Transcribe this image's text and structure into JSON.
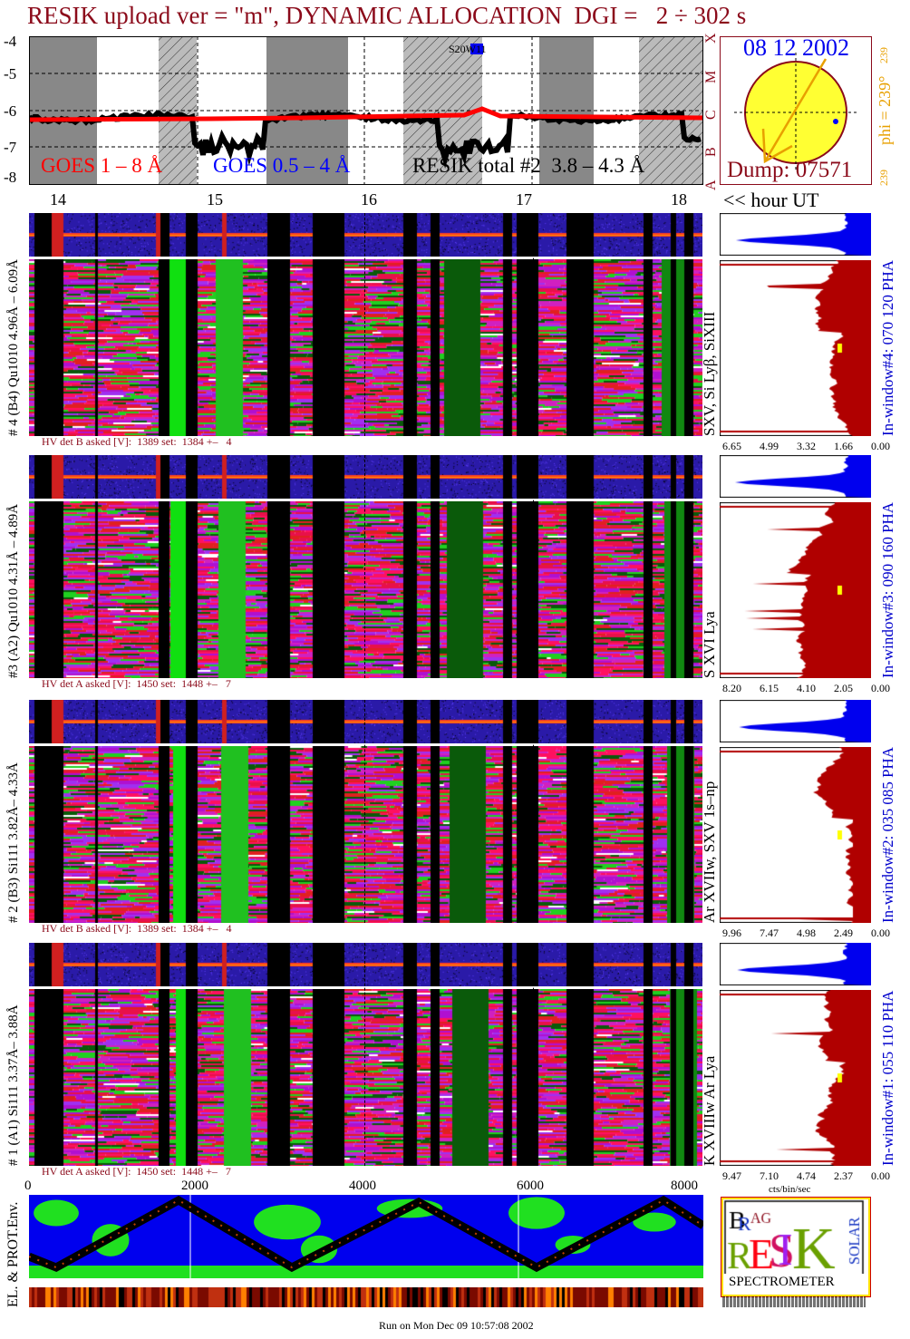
{
  "title": "RESIK upload ver = \"m\", DYNAMIC ALLOCATION  DGI =   2 ÷ 302 s",
  "goes": {
    "y_ticks": [
      "-4",
      "-5",
      "-6",
      "-7",
      "-8"
    ],
    "class_letters": [
      "X",
      "M",
      "C",
      "B",
      "A"
    ],
    "legend": [
      "GOES 1 – 8 Å",
      "GOES 0.5 – 4 Å",
      "RESIK total #2  3.8 – 4.3 Å"
    ],
    "annotation": "S20W11",
    "colors": {
      "goes_long": "#ff0000",
      "goes_short": "#0000ff",
      "resik": "#000000"
    }
  },
  "sun": {
    "date": "08 12 2002",
    "dump": "Dump: 07571",
    "phi": "phi = 239°",
    "phi_sup": "239",
    "phi_bottom": "239"
  },
  "hour_axis": {
    "labels": [
      "14",
      "15",
      "16",
      "17",
      "18"
    ],
    "caption": "<< hour UT"
  },
  "detectors": [
    {
      "left_label": "# 4 (B4) Qu1010 4.96Å – 6.09Å",
      "lines": "SXV, Si Lyβ, SiXIII",
      "window": "In-window#4:  070 120 PHA",
      "hv": "HV det B asked [V]:  1389 set:  1384 +–   4",
      "ticks": [
        "6.65",
        "4.99",
        "3.32",
        "1.66",
        "0.00"
      ]
    },
    {
      "left_label": "#3 (A2) Qu1010  4.31Å – 4.89Å",
      "lines": "S XVI Lya",
      "window": "In-window#3:  090 160 PHA",
      "hv": "HV det A asked [V]:  1450 set:  1448 +–   7",
      "ticks": [
        "8.20",
        "6.15",
        "4.10",
        "2.05",
        "0.00"
      ]
    },
    {
      "left_label": "# 2 (B3) Si111  3.82Å– 4.33Å",
      "lines": "Ar XVIIw,  SXV 1s–np",
      "window": "In-window#2:  035 085 PHA",
      "hv": "HV det B asked [V]:  1389 set:  1384 +–   4",
      "ticks": [
        "9.96",
        "7.47",
        "4.98",
        "2.49",
        "0.00"
      ]
    },
    {
      "left_label": "# 1 (A1) Si111  3.37Å– 3.88Å",
      "lines": "K XVIIIw  Ar Lya",
      "window": "In-window#1:  055 110 PHA",
      "hv": "HV det A asked [V]:  1450 set:  1448 +–   7",
      "ticks": [
        "9.47",
        "7.10",
        "4.74",
        "2.37",
        "0.00"
      ]
    }
  ],
  "x_axis": {
    "labels": [
      "0",
      "2000",
      "4000",
      "6000",
      "8000"
    ]
  },
  "spectrum_unit": "cts/bin/sec",
  "env_label": "EL. & PROT.Env.",
  "logo": {
    "letters": "BRAGG RESIK SOLAR",
    "bottom": "SPECTROMETER"
  },
  "footer": "Run on Mon Dec 09 10:57:08 2002"
}
